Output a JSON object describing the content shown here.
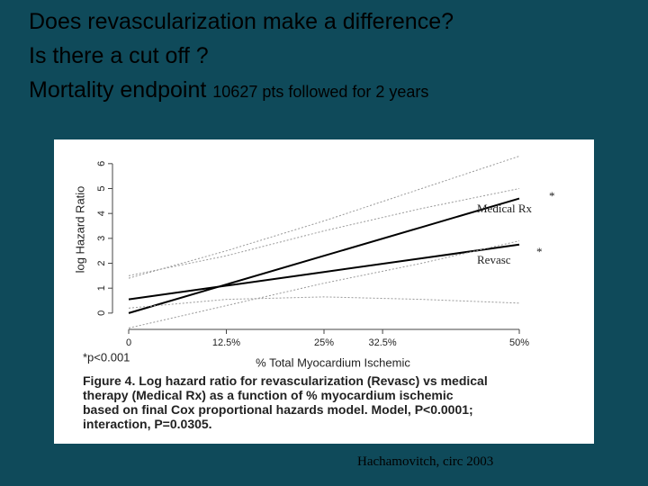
{
  "slide": {
    "title_lines": [
      "Does revascularization make a difference?",
      "Is there a cut off ?"
    ],
    "subtitle_main": "Mortality endpoint",
    "subtitle_detail": "10627 pts followed for 2 years",
    "citation": "Hachamovitch, circ 2003"
  },
  "chart_data": {
    "type": "line",
    "x": [
      0,
      12.5,
      25,
      37.5,
      50
    ],
    "xlim": [
      0,
      50
    ],
    "xticks": [
      0,
      {
        "value": 12.5,
        "label": "12.5%"
      },
      {
        "value": 25,
        "label": "25%"
      },
      {
        "value": 32.5,
        "label": "32.5%"
      },
      {
        "value": 50,
        "label": "50%"
      }
    ],
    "ylim": [
      -0.8,
      6.5
    ],
    "yticks": [
      0,
      1,
      2,
      3,
      4,
      5,
      6
    ],
    "x_label": "% Total Myocardium Ischemic",
    "y_label": "log Hazard Ratio",
    "series": [
      {
        "color": "#000000",
        "values": [
          0,
          1.15,
          2.3,
          3.45,
          4.6
        ]
      },
      {
        "color": "#000000",
        "values": [
          0.55,
          1.1,
          1.65,
          2.2,
          2.75
        ]
      },
      {
        "color": "#999999",
        "dashed": true,
        "values": [
          1.4,
          2.5,
          3.7,
          5.0,
          6.3
        ]
      },
      {
        "color": "#999999",
        "dashed": true,
        "values": [
          -0.6,
          0.3,
          1.2,
          2.0,
          2.9
        ]
      },
      {
        "color": "#999999",
        "dashed": true,
        "values": [
          1.5,
          2.3,
          3.3,
          4.2,
          5.0
        ]
      },
      {
        "color": "#999999",
        "dashed": true,
        "values": [
          0.2,
          0.55,
          0.65,
          0.55,
          0.4
        ]
      }
    ],
    "annotations": [
      "Medical Rx",
      "*",
      "Revasc",
      "*",
      "*p<0.001"
    ],
    "caption_label": "Figure 4.",
    "caption": "Log hazard ratio for revascularization (Revasc) vs medical therapy (Medical Rx) as a function of % myocardium ischemic based on final Cox proportional hazards model. Model, P<0.0001; interaction, P=0.0305."
  }
}
